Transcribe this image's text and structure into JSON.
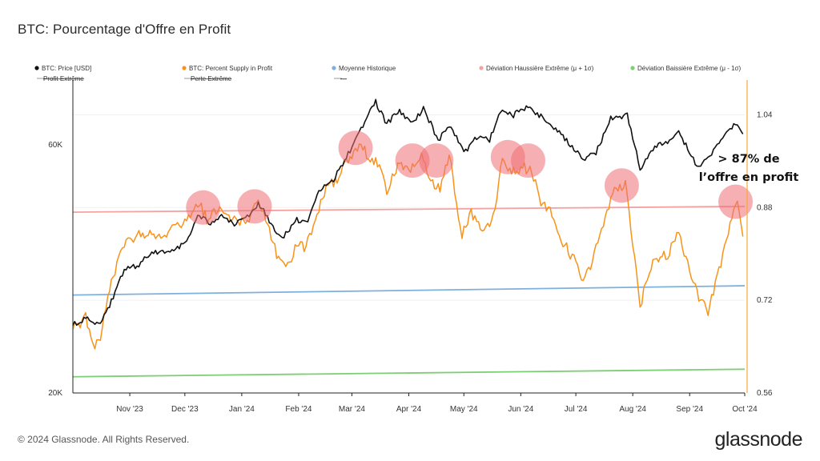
{
  "header": {
    "title": "BTC: Pourcentage d'Offre en Profit"
  },
  "footer": {
    "copyright": "© 2024 Glassnode. All Rights Reserved.",
    "brand": "glassnode"
  },
  "colors": {
    "price": "#111111",
    "supply": "#f7931a",
    "historical_mean": "#7eb0dd",
    "upper_deviation": "#f4a3a3",
    "lower_deviation": "#7ccf72",
    "right_axis": "#f7a935",
    "highlight": "#ee6f74"
  },
  "chart_data": {
    "type": "line",
    "title": "BTC: Pourcentage d'Offre en Profit",
    "x_ticks": [
      "Nov '23",
      "Dec '23",
      "Jan '24",
      "Feb '24",
      "Mar '24",
      "Apr '24",
      "May '24",
      "Jun '24",
      "Jul '24",
      "Aug '24",
      "Sep '24",
      "Oct '24"
    ],
    "x_range": [
      "2023-10-01",
      "2024-10-01"
    ],
    "left_axis": {
      "ticks": [
        "20K",
        "60K"
      ],
      "tick_values": [
        20000,
        60000
      ],
      "scale": "log",
      "range": [
        20000,
        80000
      ]
    },
    "right_axis": {
      "ticks": [
        "0.56",
        "0.72",
        "0.88",
        "1.04"
      ],
      "tick_values": [
        0.56,
        0.72,
        0.88,
        1.04
      ],
      "range": [
        0.56,
        1.1
      ]
    },
    "legend": {
      "placement": "top",
      "row1": [
        {
          "label": "BTC: Price [USD]",
          "color": "#111111",
          "marker": "dot"
        },
        {
          "label": "BTC: Percent Supply in Profit",
          "color": "#f7931a",
          "marker": "dot"
        },
        {
          "label": "Moyenne Historique",
          "color": "#7eb0dd",
          "marker": "dot"
        },
        {
          "label": "Déviation Haussière Extrême (μ + 1σ)",
          "color": "#f4a3a3",
          "marker": "dot"
        },
        {
          "label": "Déviation Baissière Extrême (μ - 1σ)",
          "color": "#7ccf72",
          "marker": "dot"
        }
      ],
      "row2": [
        {
          "label": "Profit Extrême",
          "color": "#999999",
          "marker": "line"
        },
        {
          "label": "Perte Extrême",
          "color": "#999999",
          "marker": "line"
        },
        {
          "label": "---",
          "color": "#999999",
          "marker": "line"
        }
      ]
    },
    "series": [
      {
        "name": "BTC: Price [USD]",
        "axis": "left",
        "points": [
          [
            "2023-10-01",
            27000
          ],
          [
            "2023-10-08",
            27800
          ],
          [
            "2023-10-15",
            27000
          ],
          [
            "2023-10-22",
            30000
          ],
          [
            "2023-10-29",
            34500
          ],
          [
            "2023-11-05",
            35100
          ],
          [
            "2023-11-12",
            37100
          ],
          [
            "2023-11-19",
            37300
          ],
          [
            "2023-11-26",
            37700
          ],
          [
            "2023-12-03",
            40000
          ],
          [
            "2023-12-08",
            44000
          ],
          [
            "2023-12-15",
            42500
          ],
          [
            "2023-12-22",
            43800
          ],
          [
            "2023-12-29",
            42200
          ],
          [
            "2024-01-05",
            44200
          ],
          [
            "2024-01-10",
            46400
          ],
          [
            "2024-01-16",
            43000
          ],
          [
            "2024-01-23",
            39500
          ],
          [
            "2024-01-30",
            43000
          ],
          [
            "2024-02-06",
            43000
          ],
          [
            "2024-02-12",
            49000
          ],
          [
            "2024-02-20",
            51600
          ],
          [
            "2024-02-27",
            57000
          ],
          [
            "2024-03-05",
            63000
          ],
          [
            "2024-03-10",
            69000
          ],
          [
            "2024-03-14",
            72500
          ],
          [
            "2024-03-20",
            66000
          ],
          [
            "2024-03-27",
            70000
          ],
          [
            "2024-04-03",
            66000
          ],
          [
            "2024-04-09",
            70500
          ],
          [
            "2024-04-17",
            61500
          ],
          [
            "2024-04-24",
            65000
          ],
          [
            "2024-05-01",
            58000
          ],
          [
            "2024-05-08",
            62000
          ],
          [
            "2024-05-15",
            61500
          ],
          [
            "2024-05-21",
            70000
          ],
          [
            "2024-05-28",
            68500
          ],
          [
            "2024-06-05",
            71000
          ],
          [
            "2024-06-12",
            68000
          ],
          [
            "2024-06-19",
            65000
          ],
          [
            "2024-06-26",
            61000
          ],
          [
            "2024-07-05",
            56500
          ],
          [
            "2024-07-12",
            58000
          ],
          [
            "2024-07-20",
            67500
          ],
          [
            "2024-07-29",
            68500
          ],
          [
            "2024-08-05",
            54000
          ],
          [
            "2024-08-12",
            59000
          ],
          [
            "2024-08-20",
            61000
          ],
          [
            "2024-08-26",
            63500
          ],
          [
            "2024-09-06",
            54000
          ],
          [
            "2024-09-13",
            58000
          ],
          [
            "2024-09-20",
            63000
          ],
          [
            "2024-09-27",
            66000
          ],
          [
            "2024-09-30",
            63000
          ]
        ]
      },
      {
        "name": "BTC: Percent Supply in Profit",
        "axis": "right",
        "points": [
          [
            "2023-10-01",
            0.67
          ],
          [
            "2023-10-08",
            0.69
          ],
          [
            "2023-10-12",
            0.64
          ],
          [
            "2023-10-16",
            0.66
          ],
          [
            "2023-10-22",
            0.75
          ],
          [
            "2023-10-29",
            0.82
          ],
          [
            "2023-11-05",
            0.83
          ],
          [
            "2023-11-12",
            0.84
          ],
          [
            "2023-11-19",
            0.83
          ],
          [
            "2023-11-26",
            0.85
          ],
          [
            "2023-12-03",
            0.86
          ],
          [
            "2023-12-08",
            0.89
          ],
          [
            "2023-12-13",
            0.86
          ],
          [
            "2023-12-20",
            0.88
          ],
          [
            "2023-12-27",
            0.86
          ],
          [
            "2024-01-03",
            0.85
          ],
          [
            "2024-01-09",
            0.89
          ],
          [
            "2024-01-14",
            0.86
          ],
          [
            "2024-01-20",
            0.8
          ],
          [
            "2024-01-25",
            0.77
          ],
          [
            "2024-01-31",
            0.82
          ],
          [
            "2024-02-05",
            0.81
          ],
          [
            "2024-02-10",
            0.86
          ],
          [
            "2024-02-17",
            0.92
          ],
          [
            "2024-02-23",
            0.93
          ],
          [
            "2024-02-29",
            0.97
          ],
          [
            "2024-03-05",
            0.99
          ],
          [
            "2024-03-10",
            0.97
          ],
          [
            "2024-03-16",
            0.95
          ],
          [
            "2024-03-20",
            0.91
          ],
          [
            "2024-03-27",
            0.96
          ],
          [
            "2024-04-01",
            0.94
          ],
          [
            "2024-04-08",
            0.97
          ],
          [
            "2024-04-13",
            0.93
          ],
          [
            "2024-04-18",
            0.91
          ],
          [
            "2024-04-23",
            0.97
          ],
          [
            "2024-04-30",
            0.83
          ],
          [
            "2024-05-05",
            0.87
          ],
          [
            "2024-05-12",
            0.84
          ],
          [
            "2024-05-18",
            0.87
          ],
          [
            "2024-05-22",
            0.97
          ],
          [
            "2024-05-27",
            0.94
          ],
          [
            "2024-06-02",
            0.95
          ],
          [
            "2024-06-07",
            0.94
          ],
          [
            "2024-06-12",
            0.89
          ],
          [
            "2024-06-18",
            0.87
          ],
          [
            "2024-06-24",
            0.82
          ],
          [
            "2024-06-30",
            0.79
          ],
          [
            "2024-07-05",
            0.75
          ],
          [
            "2024-07-10",
            0.79
          ],
          [
            "2024-07-17",
            0.86
          ],
          [
            "2024-07-22",
            0.91
          ],
          [
            "2024-07-28",
            0.92
          ],
          [
            "2024-08-02",
            0.79
          ],
          [
            "2024-08-05",
            0.71
          ],
          [
            "2024-08-12",
            0.79
          ],
          [
            "2024-08-20",
            0.8
          ],
          [
            "2024-08-26",
            0.84
          ],
          [
            "2024-09-02",
            0.76
          ],
          [
            "2024-09-07",
            0.72
          ],
          [
            "2024-09-11",
            0.7
          ],
          [
            "2024-09-17",
            0.77
          ],
          [
            "2024-09-22",
            0.84
          ],
          [
            "2024-09-27",
            0.89
          ],
          [
            "2024-09-30",
            0.83
          ]
        ]
      },
      {
        "name": "Moyenne Historique",
        "axis": "right",
        "points": [
          [
            "2023-10-01",
            0.729
          ],
          [
            "2024-10-01",
            0.745
          ]
        ]
      },
      {
        "name": "Déviation Haussière Extrême (μ + 1σ)",
        "axis": "right",
        "points": [
          [
            "2023-10-01",
            0.872
          ],
          [
            "2024-10-01",
            0.882
          ]
        ]
      },
      {
        "name": "Déviation Baissière Extrême (μ - 1σ)",
        "axis": "right",
        "points": [
          [
            "2023-10-01",
            0.588
          ],
          [
            "2024-10-01",
            0.601
          ]
        ]
      }
    ],
    "highlights": [
      {
        "date": "2023-12-11",
        "value": 0.88
      },
      {
        "date": "2024-01-08",
        "value": 0.882
      },
      {
        "date": "2024-03-03",
        "value": 0.983
      },
      {
        "date": "2024-04-03",
        "value": 0.961
      },
      {
        "date": "2024-04-16",
        "value": 0.961
      },
      {
        "date": "2024-05-25",
        "value": 0.967
      },
      {
        "date": "2024-06-05",
        "value": 0.961
      },
      {
        "date": "2024-07-26",
        "value": 0.918
      },
      {
        "date": "2024-09-26",
        "value": 0.89
      }
    ],
    "annotation": {
      "line1": "> 87% de",
      "line2": "l’offre en profit"
    },
    "grid": "horizontal-faint"
  }
}
